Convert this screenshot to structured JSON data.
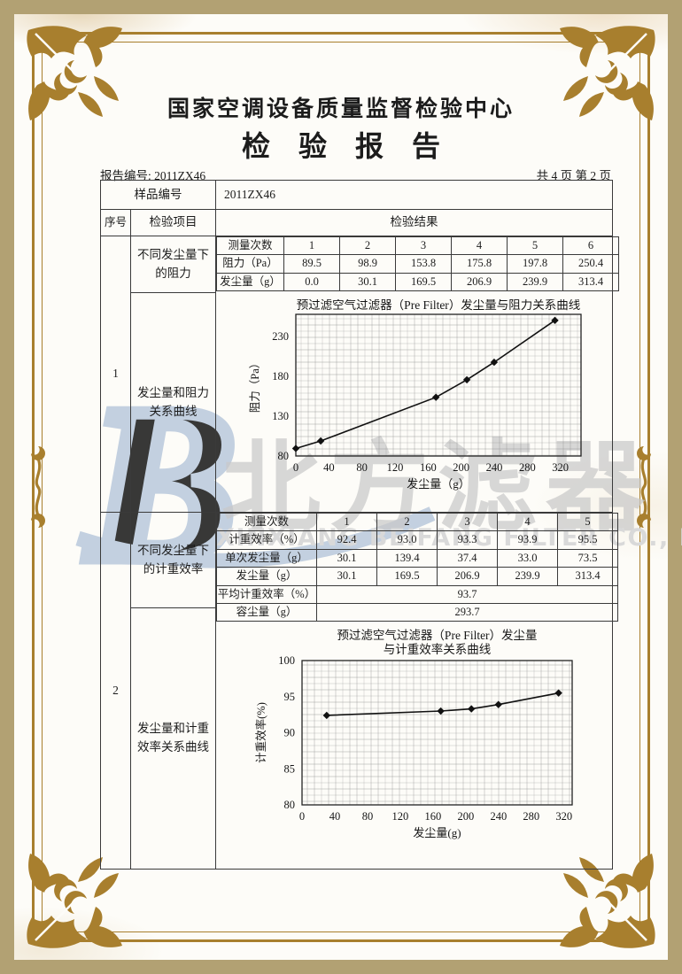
{
  "header": {
    "center_name": "国家空调设备质量监督检验中心",
    "report_title": "检验报告"
  },
  "meta": {
    "report_no_label": "报告编号:",
    "report_no": "2011ZX46",
    "page_info": "共 4 页 第 2 页"
  },
  "table": {
    "sample_no_label": "样品编号",
    "sample_no": "2011ZX46",
    "col_no": "序号",
    "col_item": "检验项目",
    "col_result": "检验结果",
    "row1": {
      "no": "1",
      "item_top": "不同发尘量下的阻力",
      "item_bottom": "发尘量和阻力关系曲线"
    },
    "row2": {
      "no": "2",
      "item_top": "不同发尘量下的计重效率",
      "item_bottom": "发尘量和计重效率关系曲线"
    },
    "subtable1": {
      "header_label": "测量次数",
      "columns": [
        "1",
        "2",
        "3",
        "4",
        "5",
        "6"
      ],
      "rows": [
        {
          "label": "阻力（Pa）",
          "values": [
            "89.5",
            "98.9",
            "153.8",
            "175.8",
            "197.8",
            "250.4"
          ]
        },
        {
          "label": "发尘量（g）",
          "values": [
            "0.0",
            "30.1",
            "169.5",
            "206.9",
            "239.9",
            "313.4"
          ]
        }
      ]
    },
    "subtable2": {
      "header_label": "测量次数",
      "columns": [
        "1",
        "2",
        "3",
        "4",
        "5"
      ],
      "rows": [
        {
          "label": "计重效率（%）",
          "values": [
            "92.4",
            "93.0",
            "93.3",
            "93.9",
            "95.5"
          ]
        },
        {
          "label": "单次发尘量（g）",
          "values": [
            "30.1",
            "139.4",
            "37.4",
            "33.0",
            "73.5"
          ]
        },
        {
          "label": "发尘量（g）",
          "values": [
            "30.1",
            "169.5",
            "206.9",
            "239.9",
            "313.4"
          ]
        }
      ],
      "merged_rows": [
        {
          "label": "平均计重效率（%）",
          "value": "93.7"
        },
        {
          "label": "容尘量（g）",
          "value": "293.7"
        }
      ]
    }
  },
  "watermark": {
    "logo_letter": "B",
    "cn": "北方滤器",
    "en": "XINXIANG BEIFANG FILTER CO., LTD."
  },
  "colors": {
    "border_tan": "#b2a173",
    "frame_gold": "#a87f2e",
    "watermark_blue": "#b9c9dc",
    "watermark_gray": "#c9c9c9",
    "table_line": "#3a3a3a"
  },
  "chart_data": [
    {
      "type": "line",
      "title": "预过滤空气过滤器（Pre Filter）发尘量与阻力关系曲线",
      "x": [
        0.0,
        30.1,
        169.5,
        206.9,
        239.9,
        313.4
      ],
      "y": [
        89.5,
        98.9,
        153.8,
        175.8,
        197.8,
        250.4
      ],
      "xlabel": "发尘量（g）",
      "ylabel": "阻力（Pa）",
      "xticks": [
        0,
        40,
        80,
        120,
        160,
        200,
        240,
        280,
        320
      ],
      "yticks": [
        80,
        130,
        180,
        230
      ],
      "xlim": [
        0,
        345
      ],
      "ylim": [
        80,
        258
      ],
      "grid": true,
      "marker": "diamond",
      "legend": "none"
    },
    {
      "type": "line",
      "title": "预过滤空气过滤器（Pre Filter）发尘量",
      "title2": "与计重效率关系曲线",
      "x": [
        30.1,
        169.5,
        206.9,
        239.9,
        313.4
      ],
      "y": [
        92.4,
        93.0,
        93.3,
        93.9,
        95.5
      ],
      "xlabel": "发尘量(g)",
      "ylabel": "计重效率(%)",
      "xticks": [
        0,
        40,
        80,
        120,
        160,
        200,
        240,
        280,
        320
      ],
      "yticks": [
        80,
        85,
        90,
        95,
        100
      ],
      "xlim": [
        0,
        330
      ],
      "ylim": [
        80,
        100
      ],
      "grid": true,
      "marker": "diamond",
      "legend": "none"
    }
  ]
}
